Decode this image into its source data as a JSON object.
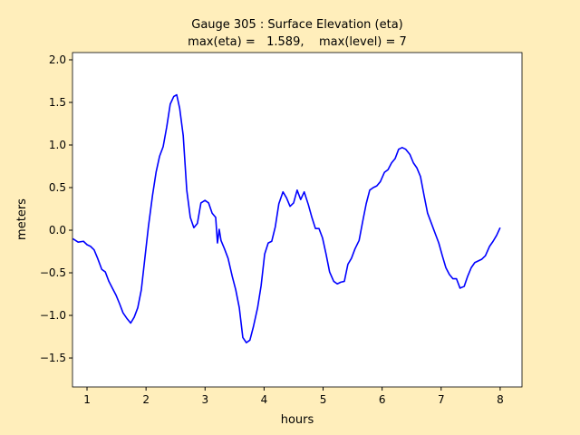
{
  "chart_data": {
    "type": "line",
    "title": "Gauge 305 : Surface Elevation (eta)",
    "subtitle": "max(eta) =   1.589,    max(level) = 7",
    "xlabel": "hours",
    "ylabel": "meters",
    "color": "#0000ff",
    "x": [
      0.76,
      0.85,
      0.94,
      1.0,
      1.06,
      1.12,
      1.18,
      1.25,
      1.31,
      1.37,
      1.43,
      1.49,
      1.55,
      1.61,
      1.68,
      1.74,
      1.8,
      1.86,
      1.92,
      1.98,
      2.04,
      2.11,
      2.17,
      2.23,
      2.29,
      2.35,
      2.41,
      2.47,
      2.52,
      2.57,
      2.63,
      2.69,
      2.75,
      2.81,
      2.87,
      2.93,
      3.0,
      3.06,
      3.12,
      3.18,
      3.21,
      3.24,
      3.27,
      3.33,
      3.39,
      3.46,
      3.52,
      3.58,
      3.64,
      3.7,
      3.76,
      3.82,
      3.89,
      3.95,
      4.01,
      4.07,
      4.13,
      4.19,
      4.25,
      4.32,
      4.38,
      4.44,
      4.5,
      4.56,
      4.62,
      4.68,
      4.75,
      4.81,
      4.87,
      4.93,
      4.99,
      5.05,
      5.11,
      5.18,
      5.24,
      5.3,
      5.36,
      5.42,
      5.48,
      5.54,
      5.61,
      5.67,
      5.73,
      5.79,
      5.85,
      5.91,
      5.97,
      6.04,
      6.1,
      6.16,
      6.22,
      6.28,
      6.34,
      6.4,
      6.47,
      6.53,
      6.59,
      6.65,
      6.71,
      6.77,
      6.83,
      6.9,
      6.96,
      7.02,
      7.08,
      7.14,
      7.2,
      7.26,
      7.32,
      7.39,
      7.45,
      7.51,
      7.57,
      7.63,
      7.69,
      7.75,
      7.82,
      7.88,
      7.94,
      8.0
    ],
    "values": [
      -0.1,
      -0.14,
      -0.13,
      -0.17,
      -0.19,
      -0.23,
      -0.33,
      -0.46,
      -0.49,
      -0.6,
      -0.68,
      -0.76,
      -0.86,
      -0.97,
      -1.04,
      -1.09,
      -1.02,
      -0.91,
      -0.7,
      -0.33,
      0.04,
      0.41,
      0.68,
      0.87,
      0.98,
      1.21,
      1.48,
      1.57,
      1.589,
      1.43,
      1.11,
      0.47,
      0.15,
      0.03,
      0.08,
      0.32,
      0.35,
      0.32,
      0.2,
      0.15,
      -0.15,
      0.01,
      -0.12,
      -0.22,
      -0.33,
      -0.54,
      -0.7,
      -0.91,
      -1.26,
      -1.32,
      -1.29,
      -1.13,
      -0.91,
      -0.65,
      -0.28,
      -0.15,
      -0.13,
      0.04,
      0.31,
      0.45,
      0.38,
      0.28,
      0.32,
      0.47,
      0.36,
      0.45,
      0.3,
      0.15,
      0.02,
      0.02,
      -0.09,
      -0.28,
      -0.49,
      -0.6,
      -0.63,
      -0.61,
      -0.6,
      -0.4,
      -0.33,
      -0.22,
      -0.12,
      0.1,
      0.31,
      0.47,
      0.5,
      0.52,
      0.57,
      0.68,
      0.71,
      0.79,
      0.84,
      0.95,
      0.97,
      0.95,
      0.89,
      0.79,
      0.73,
      0.63,
      0.41,
      0.2,
      0.09,
      -0.04,
      -0.15,
      -0.3,
      -0.44,
      -0.52,
      -0.57,
      -0.57,
      -0.68,
      -0.66,
      -0.54,
      -0.44,
      -0.38,
      -0.36,
      -0.34,
      -0.3,
      -0.19,
      -0.13,
      -0.06,
      0.03
    ],
    "xlim": [
      0.754,
      8.37
    ],
    "ylim": [
      -1.84,
      2.085
    ],
    "xticks": [
      1,
      2,
      3,
      4,
      5,
      6,
      7,
      8
    ],
    "yticks": [
      {
        "value": -1.5,
        "label": "−1.5"
      },
      {
        "value": -1.0,
        "label": "−1.0"
      },
      {
        "value": -0.5,
        "label": "−0.5"
      },
      {
        "value": 0,
        "label": "0.0"
      },
      0.5,
      {
        "value": 1,
        "label": "1.0"
      },
      1.5,
      {
        "value": 2,
        "label": "2.0"
      }
    ]
  }
}
